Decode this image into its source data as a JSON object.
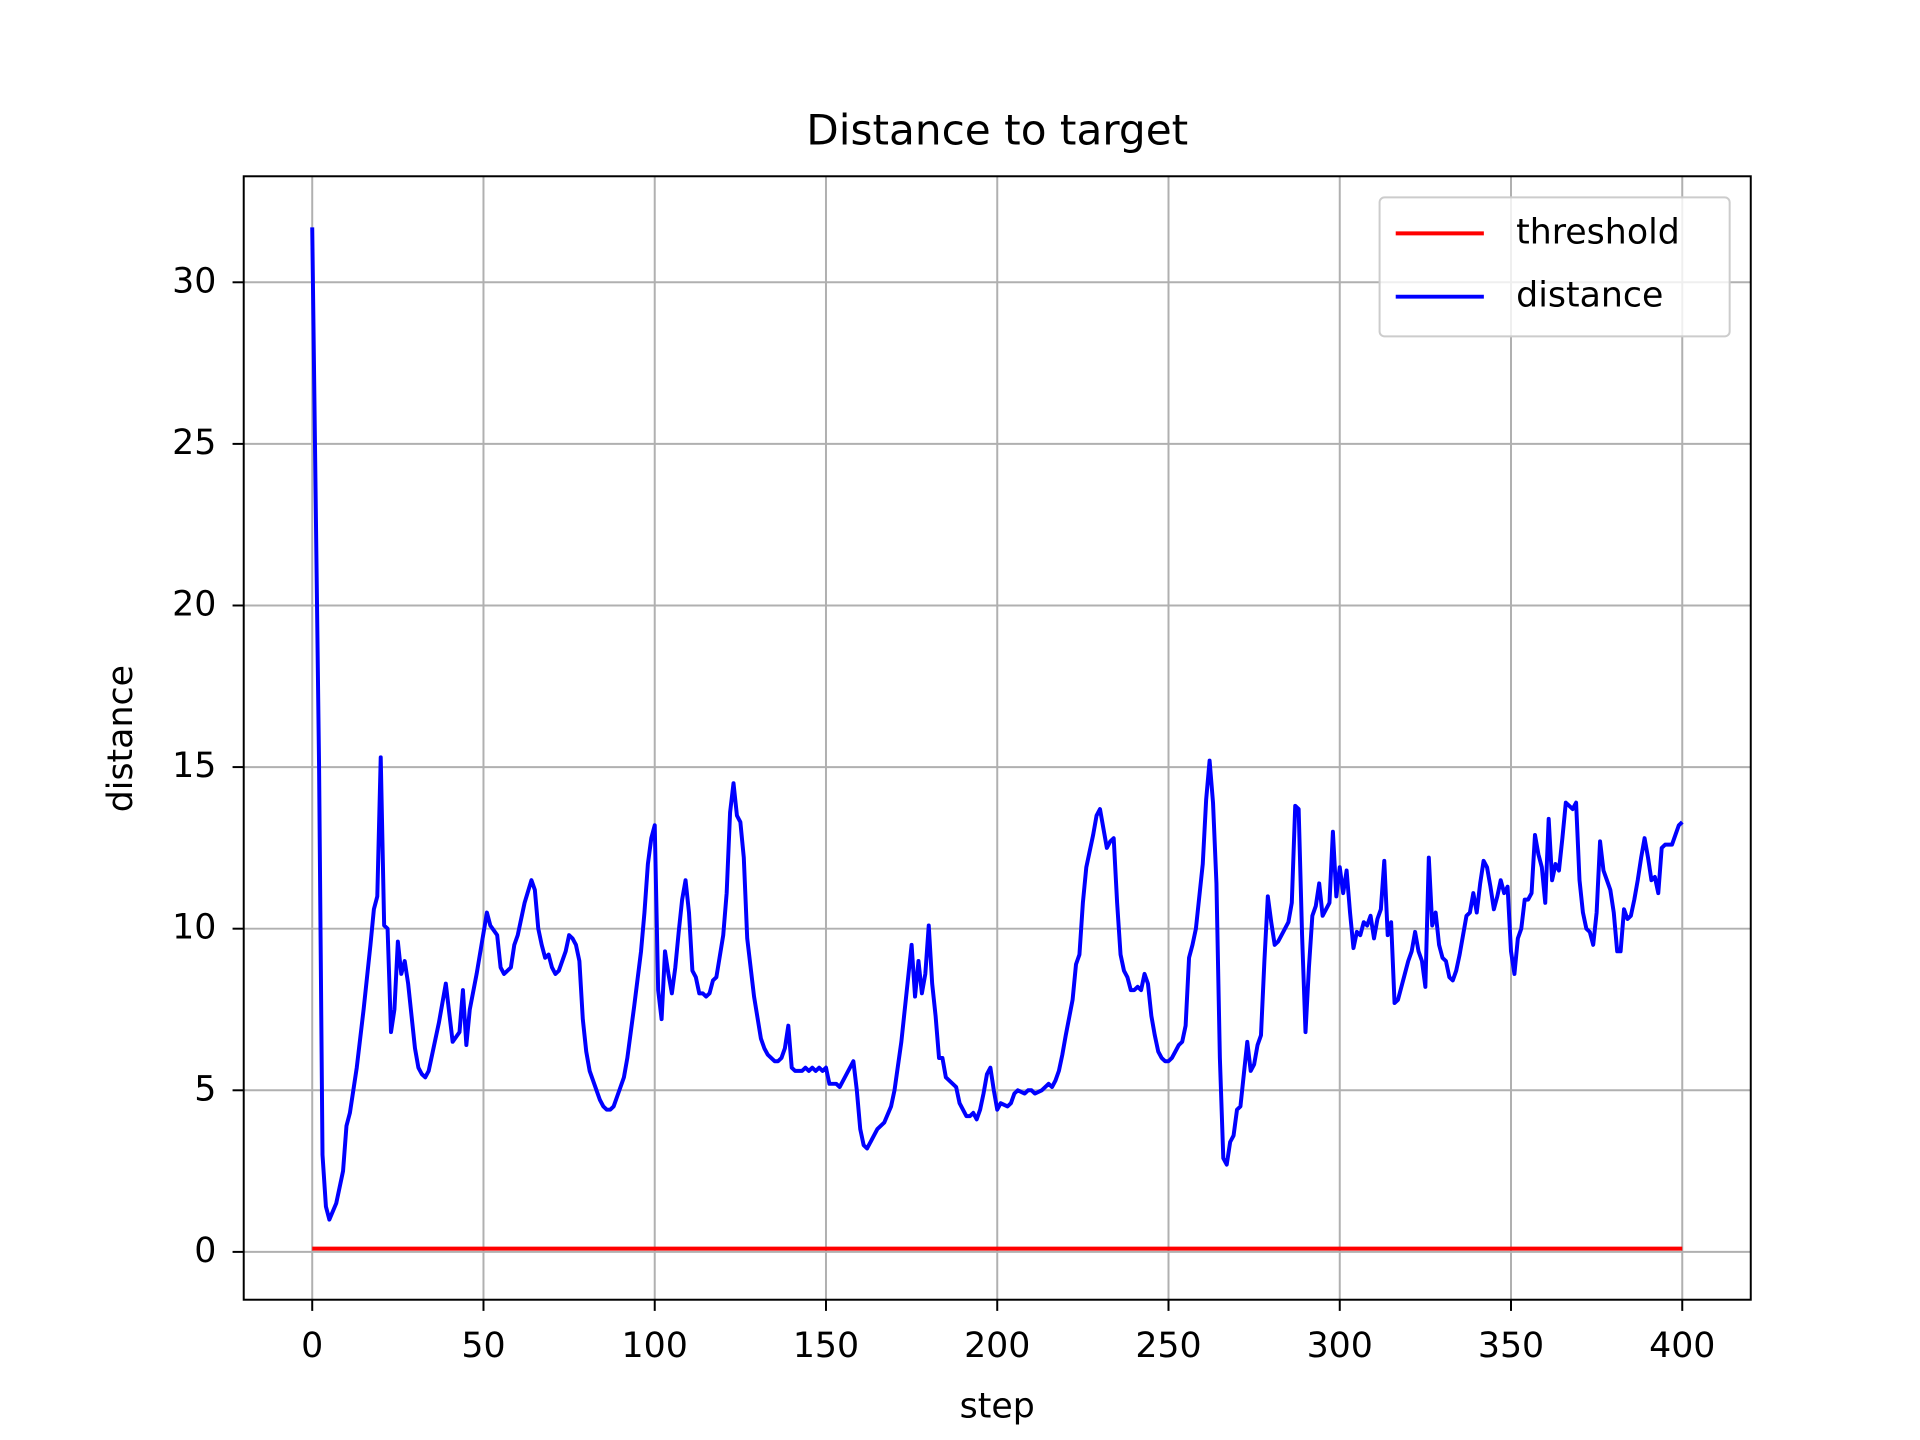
{
  "chart_data": {
    "type": "line",
    "title": "Distance to target",
    "xlabel": "step",
    "ylabel": "distance",
    "xlim": [
      -20,
      420
    ],
    "ylim": [
      -1.48,
      33.28
    ],
    "xticks": [
      0,
      50,
      100,
      150,
      200,
      250,
      300,
      350,
      400
    ],
    "yticks": [
      0,
      5,
      10,
      15,
      20,
      25,
      30
    ],
    "grid": true,
    "legend": "upper right",
    "series": [
      {
        "name": "threshold",
        "color": "#ff0000",
        "x": [
          0,
          400
        ],
        "values": [
          0.1,
          0.1
        ]
      },
      {
        "name": "distance",
        "color": "#0000ff",
        "x": [
          0,
          2,
          3,
          4,
          5,
          7,
          9,
          10,
          11,
          13,
          15,
          17,
          18,
          19,
          20,
          21,
          22,
          23,
          24,
          25,
          26,
          27,
          28,
          30,
          31,
          32,
          33,
          34,
          36,
          37,
          39,
          41,
          43,
          44,
          45,
          46,
          48,
          51,
          52,
          54,
          55,
          56,
          58,
          59,
          60,
          62,
          64,
          65,
          66,
          67,
          68,
          69,
          70,
          71,
          72,
          74,
          75,
          76,
          77,
          78,
          79,
          80,
          81,
          83,
          84,
          85,
          86,
          87,
          88,
          89,
          91,
          92,
          93,
          94,
          96,
          97,
          98,
          99,
          100,
          101,
          102,
          103,
          104,
          105,
          106,
          107,
          108,
          109,
          110,
          111,
          112,
          113,
          114,
          115,
          116,
          117,
          118,
          120,
          121,
          122,
          123,
          124,
          125,
          126,
          127,
          129,
          131,
          132,
          133,
          134,
          135,
          136,
          137,
          138,
          139,
          140,
          141,
          143,
          144,
          145,
          146,
          147,
          148,
          149,
          150,
          151,
          153,
          154,
          156,
          158,
          159,
          160,
          161,
          162,
          163,
          164,
          165,
          167,
          169,
          170,
          172,
          174,
          175,
          176,
          177,
          178,
          179,
          180,
          181,
          182,
          183,
          184,
          185,
          187,
          188,
          189,
          191,
          192,
          193,
          194,
          195,
          196,
          197,
          198,
          199,
          200,
          201,
          203,
          204,
          205,
          206,
          208,
          209,
          210,
          211,
          213,
          215,
          216,
          217,
          218,
          219,
          220,
          222,
          223,
          224,
          225,
          226,
          228,
          229,
          230,
          232,
          233,
          234,
          235,
          236,
          237,
          238,
          239,
          240,
          241,
          242,
          243,
          244,
          245,
          246,
          247,
          248,
          249,
          250,
          251,
          252,
          253,
          254,
          255,
          256,
          257,
          258,
          259,
          260,
          261,
          262,
          263,
          264,
          265,
          266,
          267,
          268,
          269,
          270,
          271,
          272,
          273,
          274,
          275,
          276,
          277,
          278,
          279,
          280,
          281,
          282,
          283,
          284,
          285,
          286,
          287,
          288,
          289,
          290,
          291,
          292,
          293,
          294,
          295,
          296,
          297,
          298,
          299,
          300,
          301,
          302,
          303,
          304,
          305,
          306,
          307,
          308,
          309,
          310,
          311,
          312,
          313,
          314,
          315,
          316,
          317,
          318,
          319,
          320,
          321,
          322,
          323,
          324,
          325,
          326,
          327,
          328,
          329,
          330,
          331,
          332,
          333,
          334,
          335,
          336,
          337,
          338,
          339,
          340,
          341,
          342,
          343,
          344,
          345,
          346,
          347,
          348,
          349,
          350,
          351,
          352,
          353,
          354,
          355,
          356,
          357,
          358,
          359,
          360,
          361,
          362,
          363,
          364,
          365,
          366,
          367,
          368,
          369,
          370,
          371,
          372,
          373,
          374,
          375,
          376,
          377,
          378,
          379,
          380,
          381,
          382,
          383,
          384,
          385,
          386,
          387,
          388,
          389,
          390,
          391,
          392,
          393,
          394,
          395,
          396,
          397,
          398,
          399,
          400
        ],
        "values": [
          31.7,
          15,
          3.0,
          1.4,
          1.0,
          1.5,
          2.5,
          3.9,
          4.3,
          5.7,
          7.5,
          9.5,
          10.6,
          11.0,
          15.3,
          10.1,
          10.0,
          6.8,
          7.5,
          9.6,
          8.6,
          9.0,
          8.3,
          6.3,
          5.7,
          5.5,
          5.4,
          5.6,
          6.6,
          7.1,
          8.3,
          6.5,
          6.8,
          8.1,
          6.4,
          7.5,
          8.6,
          10.5,
          10.1,
          9.8,
          8.8,
          8.6,
          8.8,
          9.5,
          9.8,
          10.8,
          11.5,
          11.2,
          10.0,
          9.5,
          9.1,
          9.2,
          8.8,
          8.6,
          8.7,
          9.3,
          9.8,
          9.7,
          9.5,
          9.0,
          7.2,
          6.2,
          5.6,
          5.0,
          4.7,
          4.5,
          4.4,
          4.4,
          4.5,
          4.8,
          5.4,
          6.0,
          6.8,
          7.6,
          9.3,
          10.5,
          12.0,
          12.8,
          13.2,
          8.1,
          7.2,
          9.3,
          8.6,
          8.0,
          8.8,
          9.9,
          10.9,
          11.5,
          10.5,
          8.7,
          8.5,
          8.0,
          8.0,
          7.9,
          8.0,
          8.4,
          8.5,
          9.8,
          11.1,
          13.6,
          14.5,
          13.5,
          13.3,
          12.2,
          9.7,
          7.9,
          6.6,
          6.3,
          6.1,
          6.0,
          5.9,
          5.9,
          6.0,
          6.3,
          7.0,
          5.7,
          5.6,
          5.6,
          5.7,
          5.6,
          5.7,
          5.6,
          5.7,
          5.6,
          5.7,
          5.2,
          5.2,
          5.1,
          5.5,
          5.9,
          5.0,
          3.8,
          3.3,
          3.2,
          3.4,
          3.6,
          3.8,
          4.0,
          4.5,
          5.0,
          6.5,
          8.5,
          9.5,
          7.9,
          9.0,
          8.0,
          8.6,
          10.1,
          8.3,
          7.3,
          6.0,
          6.0,
          5.4,
          5.2,
          5.1,
          4.6,
          4.2,
          4.2,
          4.3,
          4.1,
          4.4,
          4.9,
          5.5,
          5.7,
          5.0,
          4.4,
          4.6,
          4.5,
          4.6,
          4.9,
          5.0,
          4.9,
          5.0,
          5.0,
          4.9,
          5.0,
          5.2,
          5.1,
          5.3,
          5.6,
          6.1,
          6.7,
          7.8,
          8.9,
          9.2,
          10.8,
          11.9,
          12.9,
          13.5,
          13.7,
          12.5,
          12.7,
          12.8,
          10.8,
          9.2,
          8.7,
          8.5,
          8.1,
          8.1,
          8.2,
          8.1,
          8.6,
          8.3,
          7.3,
          6.7,
          6.2,
          6.0,
          5.9,
          5.9,
          6.0,
          6.2,
          6.4,
          6.5,
          7.0,
          9.1,
          9.5,
          10.0,
          11.0,
          12.0,
          14.0,
          15.2,
          13.9,
          11.4,
          6.0,
          2.9,
          2.7,
          3.4,
          3.6,
          4.4,
          4.5,
          5.5,
          6.5,
          5.6,
          5.8,
          6.4,
          6.7,
          9.0,
          11.0,
          10.2,
          9.5,
          9.6,
          9.8,
          10.0,
          10.2,
          10.8,
          13.8,
          13.7,
          9.8,
          6.8,
          8.8,
          10.4,
          10.7,
          11.4,
          10.4,
          10.6,
          10.8,
          13.0,
          11.0,
          11.9,
          11.1,
          11.8,
          10.5,
          9.4,
          9.9,
          9.8,
          10.2,
          10.1,
          10.4,
          9.7,
          10.3,
          10.6,
          12.1,
          9.8,
          10.2,
          7.7,
          7.8,
          8.2,
          8.6,
          9.0,
          9.3,
          9.9,
          9.3,
          9.0,
          8.2,
          12.2,
          10.1,
          10.5,
          9.5,
          9.1,
          9.0,
          8.5,
          8.4,
          8.7,
          9.2,
          9.8,
          10.4,
          10.5,
          11.1,
          10.5,
          11.4,
          12.1,
          11.9,
          11.3,
          10.6,
          11.0,
          11.5,
          11.1,
          11.3,
          9.3,
          8.6,
          9.7,
          10.0,
          10.9,
          10.9,
          11.1,
          12.9,
          12.3,
          11.9,
          10.8,
          13.4,
          11.5,
          12.0,
          11.8,
          12.8,
          13.9,
          13.8,
          13.7,
          13.9,
          11.5,
          10.5,
          10.0,
          9.9,
          9.5,
          10.5,
          12.7,
          11.8,
          11.5,
          11.2,
          10.5,
          9.3,
          9.3,
          10.6,
          10.3,
          10.4,
          10.9,
          11.5,
          12.2,
          12.8,
          12.2,
          11.5,
          11.6,
          11.1,
          12.5,
          12.6,
          12.6,
          12.6,
          12.9,
          13.2,
          13.3
        ]
      }
    ]
  }
}
